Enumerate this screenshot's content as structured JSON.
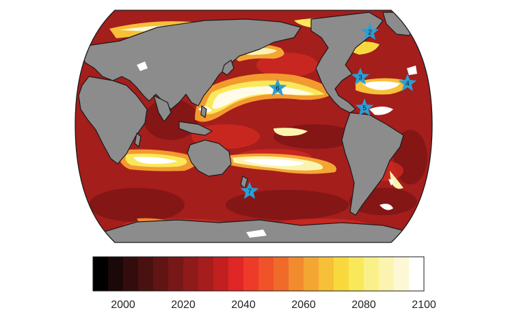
{
  "map": {
    "projection": "Robinson-like global ocean map",
    "ocean_colormap": "time of emergence, dark red (early) to white (late)",
    "land_color": "#8c8c8c",
    "marker_color": "#2a9fd6",
    "markers": [
      {
        "id": "2",
        "label": "2",
        "region": "North Atlantic, off Newfoundland"
      },
      {
        "id": "3",
        "label": "3",
        "region": "Western North Atlantic, Bermuda"
      },
      {
        "id": "4",
        "label": "4",
        "region": "Eastern North Atlantic, Canary Islands"
      },
      {
        "id": "5",
        "label": "5",
        "region": "Caribbean Sea, Cariaco Basin"
      },
      {
        "id": "6",
        "label": "6",
        "region": "North Pacific, Hawaii"
      },
      {
        "id": "7",
        "label": "7",
        "region": "Southern Ocean, south of New Zealand"
      }
    ]
  },
  "colorbar": {
    "min": 1990,
    "max": 2100,
    "step": 5,
    "tick_labels": [
      "2000",
      "2020",
      "2040",
      "2060",
      "2080",
      "2100"
    ],
    "tick_values": [
      2000,
      2020,
      2040,
      2060,
      2080,
      2100
    ],
    "colors": [
      "#000000",
      "#1b0808",
      "#330d0d",
      "#4a1111",
      "#611414",
      "#781717",
      "#8f1a1a",
      "#a61d1d",
      "#c22020",
      "#e02626",
      "#ee3a28",
      "#f0522a",
      "#f06a2a",
      "#f28a2e",
      "#f4a633",
      "#f6c038",
      "#f8d93d",
      "#f9e85a",
      "#faf08a",
      "#fbf4b0",
      "#fcf8d6",
      "#ffffff"
    ]
  }
}
